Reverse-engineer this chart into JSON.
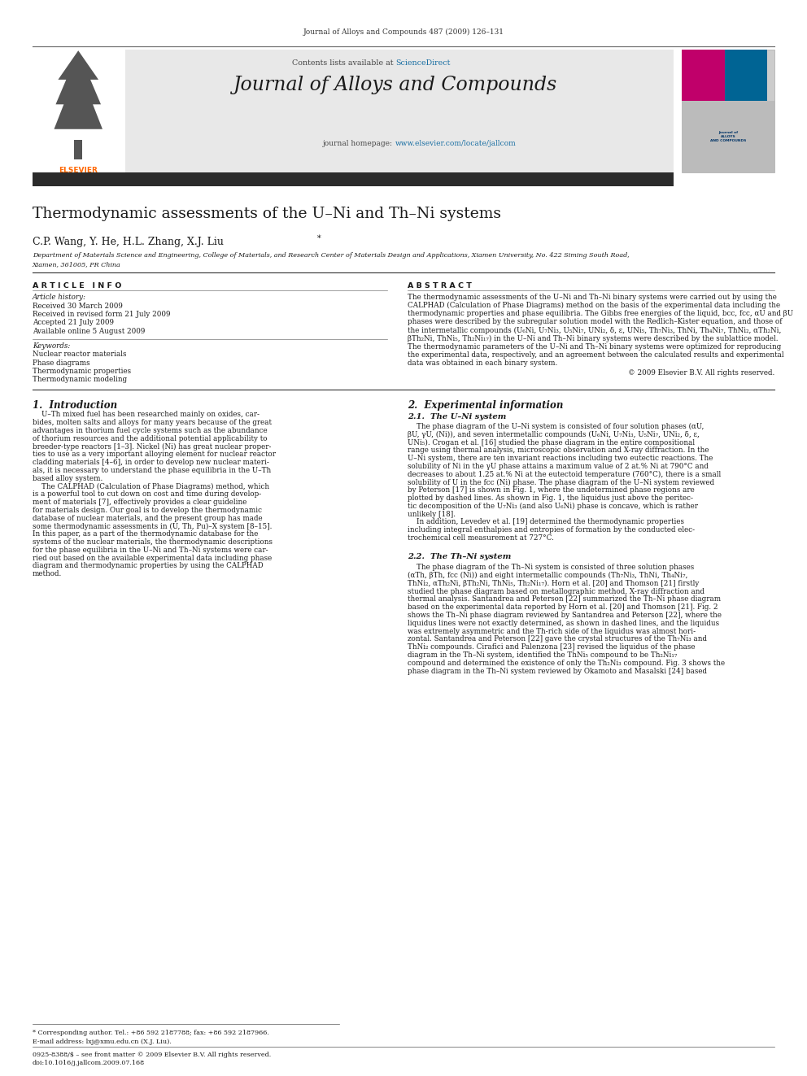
{
  "page_width": 9.92,
  "page_height": 13.23,
  "background_color": "#ffffff",
  "journal_citation": "Journal of Alloys and Compounds 487 (2009) 126–131",
  "header_bg": "#e8e8e8",
  "contents_line": "Contents lists available at ",
  "sciencedirect_text": "ScienceDirect",
  "sciencedirect_color": "#1a6fa3",
  "journal_title": "Journal of Alloys and Compounds",
  "homepage_prefix": "journal homepage: ",
  "homepage_url": "www.elsevier.com/locate/jallcom",
  "homepage_color": "#1a6fa3",
  "dark_bar_color": "#2b2b2b",
  "paper_title": "Thermodynamic assessments of the U–Ni and Th–Ni systems",
  "authors_plain": "C.P. Wang, Y. He, H.L. Zhang, X.J. Liu",
  "affiliation_line1": "Department of Materials Science and Engineering, College of Materials, and Research Center of Materials Design and Applications, Xiamen University, No. 422 Siming South Road,",
  "affiliation_line2": "Xiamen, 361005, PR China",
  "article_info_title": "A R T I C L E   I N F O",
  "abstract_title": "A B S T R A C T",
  "article_history_label": "Article history:",
  "received": "Received 30 March 2009",
  "revised": "Received in revised form 21 July 2009",
  "accepted": "Accepted 21 July 2009",
  "available": "Available online 5 August 2009",
  "keywords_label": "Keywords:",
  "keywords": [
    "Nuclear reactor materials",
    "Phase diagrams",
    "Thermodynamic properties",
    "Thermodynamic modeling"
  ],
  "abstract_lines": [
    "The thermodynamic assessments of the U–Ni and Th–Ni binary systems were carried out by using the",
    "CALPHAD (Calculation of Phase Diagrams) method on the basis of the experimental data including the",
    "thermodynamic properties and phase equilibria. The Gibbs free energies of the liquid, bcc, fcc, αU and βU",
    "phases were described by the subregular solution model with the Redlich–Kister equation, and those of",
    "the intermetallic compounds (U₆Ni, U₇Ni₃, U₅Ni₇, UNi₂, δ, ε, UNi₅, Th₇Ni₃, ThNi, Th₄Ni₇, ThNi₂, αTh₂Ni,",
    "βTh₂Ni, ThNi₅, Th₂Ni₁₇) in the U–Ni and Th–Ni binary systems were described by the sublattice model.",
    "The thermodynamic parameters of the U–Ni and Th–Ni binary systems were optimized for reproducing",
    "the experimental data, respectively, and an agreement between the calculated results and experimental",
    "data was obtained in each binary system."
  ],
  "copyright": "© 2009 Elsevier B.V. All rights reserved.",
  "section1_title": "1.  Introduction",
  "intro_lines": [
    "    U–Th mixed fuel has been researched mainly on oxides, car-",
    "bides, molten salts and alloys for many years because of the great",
    "advantages in thorium fuel cycle systems such as the abundance",
    "of thorium resources and the additional potential applicability to",
    "breeder-type reactors [1–3]. Nickel (Ni) has great nuclear proper-",
    "ties to use as a very important alloying element for nuclear reactor",
    "cladding materials [4–6], in order to develop new nuclear materi-",
    "als, it is necessary to understand the phase equilibria in the U–Th",
    "based alloy system.",
    "    The CALPHAD (Calculation of Phase Diagrams) method, which",
    "is a powerful tool to cut down on cost and time during develop-",
    "ment of materials [7], effectively provides a clear guideline",
    "for materials design. Our goal is to develop the thermodynamic",
    "database of nuclear materials, and the present group has made",
    "some thermodynamic assessments in (U, Th, Pu)–X system [8–15].",
    "In this paper, as a part of the thermodynamic database for the",
    "systems of the nuclear materials, the thermodynamic descriptions",
    "for the phase equilibria in the U–Ni and Th–Ni systems were car-",
    "ried out based on the available experimental data including phase",
    "diagram and thermodynamic properties by using the CALPHAD",
    "method."
  ],
  "section2_title": "2.  Experimental information",
  "section2_1_title": "2.1.  The U–Ni system",
  "sec21_lines": [
    "    The phase diagram of the U–Ni system is consisted of four solution phases (αU,",
    "βU, γU, (Ni)), and seven intermetallic compounds (U₆Ni, U₇Ni₃, U₅Ni₇, UNi₂, δ, ε,",
    "UNi₅). Crogan et al. [16] studied the phase diagram in the entire compositional",
    "range using thermal analysis, microscopic observation and X-ray diffraction. In the",
    "U–Ni system, there are ten invariant reactions including two eutectic reactions. The",
    "solubility of Ni in the γU phase attains a maximum value of 2 at.% Ni at 790°C and",
    "decreases to about 1.25 at.% Ni at the eutectoid temperature (760°C), there is a small",
    "solubility of U in the fcc (Ni) phase. The phase diagram of the U–Ni system reviewed",
    "by Peterson [17] is shown in Fig. 1, where the undetermined phase regions are",
    "plotted by dashed lines. As shown in Fig. 1, the liquidus just above the peritec-",
    "tic decomposition of the U₇Ni₃ (and also U₆Ni) phase is concave, which is rather",
    "unlikely [18].",
    "    In addition, Levedev et al. [19] determined the thermodynamic properties",
    "including integral enthalpies and entropies of formation by the conducted elec-",
    "trochemical cell measurement at 727°C."
  ],
  "section2_2_title": "2.2.  The Th–Ni system",
  "sec22_lines": [
    "    The phase diagram of the Th–Ni system is consisted of three solution phases",
    "(αTh, βTh, fcc (Ni)) and eight intermetallic compounds (Th₇Ni₃, ThNi, Th₄Ni₇,",
    "ThNi₂, αTh₂Ni, βTh₂Ni, ThNi₅, Th₂Ni₁₇). Horn et al. [20] and Thomson [21] firstly",
    "studied the phase diagram based on metallographic method, X-ray diffraction and",
    "thermal analysis. Santandrea and Peterson [22] summarized the Th–Ni phase diagram",
    "based on the experimental data reported by Horn et al. [20] and Thomson [21]. Fig. 2",
    "shows the Th–Ni phase diagram reviewed by Santandrea and Peterson [22], where the",
    "liquidus lines were not exactly determined, as shown in dashed lines, and the liquidus",
    "was extremely asymmetric and the Th-rich side of the liquidus was almost hori-",
    "zontal. Santandrea and Peterson [22] gave the crystal structures of the Th₇Ni₃ and",
    "ThNi₂ compounds. Cirafici and Palenzona [23] revised the liquidus of the phase",
    "diagram in the Th–Ni system, identified the ThNi₅ compound to be Th₂Ni₁₇",
    "compound and determined the existence of only the Th₂Ni₃ compound. Fig. 3 shows the",
    "phase diagram in the Th–Ni system reviewed by Okamoto and Masalski [24] based"
  ],
  "footnote_line1": "* Corresponding author. Tel.: +86 592 2187788; fax: +86 592 2187966.",
  "footnote_line2": "E-mail address: lxj@xmu.edu.cn (X.J. Liu).",
  "footnote_issn": "0925-8388/$ – see front matter © 2009 Elsevier B.V. All rights reserved.",
  "footnote_doi": "doi:10.1016/j.jallcom.2009.07.168",
  "elsevier_logo_color": "#ff6600",
  "journal_cover_magenta": "#c0006a",
  "journal_cover_blue": "#006494"
}
